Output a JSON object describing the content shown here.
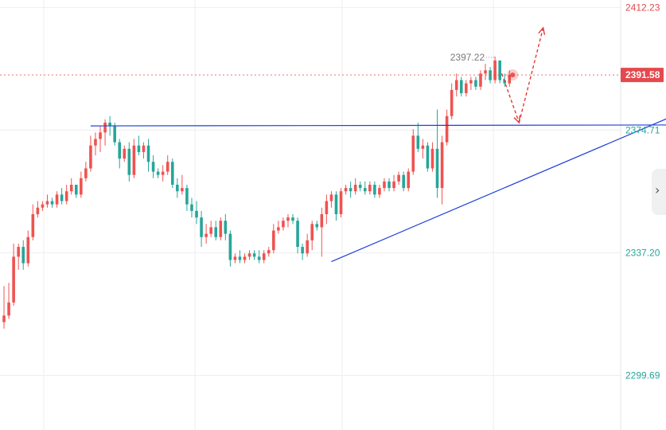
{
  "chart_data": {
    "type": "candlestick",
    "price_scale": {
      "labels": [
        "2412.23",
        "2374.71",
        "2337.20",
        "2299.69"
      ],
      "values": [
        2412.23,
        2374.71,
        2337.2,
        2299.69
      ],
      "ylim": [
        2283.0,
        2414.5
      ]
    },
    "last_price": {
      "value": 2391.58,
      "label": "2391.58"
    },
    "session_high": {
      "value": 2397.22,
      "label": "2397.22"
    },
    "ohlc": [
      [
        2316,
        2327,
        2314,
        2318
      ],
      [
        2318,
        2328,
        2317,
        2322
      ],
      [
        2322,
        2340,
        2321,
        2336
      ],
      [
        2336,
        2340,
        2332,
        2339
      ],
      [
        2339,
        2341,
        2332,
        2334
      ],
      [
        2334,
        2344,
        2333,
        2342
      ],
      [
        2342,
        2352,
        2341,
        2349
      ],
      [
        2349,
        2353,
        2348,
        2351
      ],
      [
        2351,
        2353,
        2350,
        2352
      ],
      [
        2352,
        2355,
        2351,
        2353
      ],
      [
        2353,
        2354,
        2351,
        2352
      ],
      [
        2352,
        2356,
        2351,
        2355
      ],
      [
        2355,
        2357,
        2352,
        2353
      ],
      [
        2353,
        2358,
        2352,
        2356
      ],
      [
        2356,
        2360,
        2355,
        2358
      ],
      [
        2358,
        2358,
        2354,
        2355
      ],
      [
        2355,
        2362,
        2354,
        2360
      ],
      [
        2360,
        2365,
        2359,
        2363
      ],
      [
        2363,
        2373,
        2362,
        2370
      ],
      [
        2370,
        2374,
        2367,
        2372
      ],
      [
        2372,
        2376,
        2368,
        2374
      ],
      [
        2374,
        2378,
        2370,
        2377
      ],
      [
        2377,
        2379,
        2373,
        2376
      ],
      [
        2376,
        2377,
        2370,
        2371
      ],
      [
        2371,
        2372,
        2363,
        2366
      ],
      [
        2366,
        2370,
        2365,
        2369
      ],
      [
        2369,
        2371,
        2359,
        2361
      ],
      [
        2361,
        2372,
        2360,
        2370
      ],
      [
        2370,
        2373,
        2367,
        2368
      ],
      [
        2368,
        2371,
        2366,
        2370
      ],
      [
        2370,
        2372,
        2362,
        2365
      ],
      [
        2365,
        2367,
        2360,
        2362
      ],
      [
        2362,
        2363,
        2360,
        2361
      ],
      [
        2361,
        2364,
        2359,
        2362
      ],
      [
        2362,
        2367,
        2361,
        2365
      ],
      [
        2365,
        2366,
        2357,
        2358
      ],
      [
        2358,
        2360,
        2354,
        2356
      ],
      [
        2356,
        2361,
        2355,
        2357
      ],
      [
        2357,
        2358,
        2350,
        2352
      ],
      [
        2352,
        2354,
        2348,
        2350
      ],
      [
        2350,
        2353,
        2346,
        2348
      ],
      [
        2348,
        2350,
        2339,
        2342
      ],
      [
        2342,
        2346,
        2340,
        2343
      ],
      [
        2343,
        2347,
        2342,
        2345
      ],
      [
        2345,
        2347,
        2341,
        2342
      ],
      [
        2342,
        2348,
        2341,
        2347
      ],
      [
        2347,
        2349,
        2341,
        2343
      ],
      [
        2343,
        2344,
        2333,
        2335
      ],
      [
        2335,
        2337,
        2334,
        2336
      ],
      [
        2336,
        2338,
        2334,
        2335
      ],
      [
        2335,
        2337,
        2334,
        2336
      ],
      [
        2336,
        2338,
        2335,
        2337
      ],
      [
        2337,
        2338,
        2335,
        2336
      ],
      [
        2336,
        2338,
        2334,
        2335
      ],
      [
        2335,
        2338,
        2334,
        2337
      ],
      [
        2337,
        2339,
        2336,
        2338
      ],
      [
        2338,
        2346,
        2337,
        2344
      ],
      [
        2344,
        2347,
        2343,
        2345
      ],
      [
        2345,
        2348,
        2344,
        2347
      ],
      [
        2347,
        2349,
        2345,
        2348
      ],
      [
        2348,
        2349,
        2346,
        2347
      ],
      [
        2347,
        2348,
        2337,
        2339
      ],
      [
        2339,
        2340,
        2335,
        2337
      ],
      [
        2337,
        2343,
        2336,
        2341
      ],
      [
        2341,
        2347,
        2338,
        2346
      ],
      [
        2346,
        2347,
        2344,
        2345
      ],
      [
        2345,
        2351,
        2336,
        2349
      ],
      [
        2349,
        2355,
        2346,
        2353
      ],
      [
        2353,
        2356,
        2351,
        2355
      ],
      [
        2355,
        2356,
        2347,
        2349
      ],
      [
        2349,
        2357,
        2348,
        2356
      ],
      [
        2356,
        2358,
        2355,
        2357
      ],
      [
        2357,
        2359,
        2354,
        2356
      ],
      [
        2356,
        2360,
        2355,
        2358
      ],
      [
        2358,
        2359,
        2356,
        2357
      ],
      [
        2357,
        2359,
        2355,
        2356
      ],
      [
        2356,
        2359,
        2355,
        2358
      ],
      [
        2358,
        2359,
        2354,
        2355
      ],
      [
        2355,
        2358,
        2354,
        2357
      ],
      [
        2357,
        2360,
        2356,
        2359
      ],
      [
        2359,
        2360,
        2356,
        2357
      ],
      [
        2357,
        2361,
        2356,
        2359
      ],
      [
        2359,
        2362,
        2358,
        2361
      ],
      [
        2361,
        2362,
        2356,
        2357
      ],
      [
        2357,
        2363,
        2356,
        2362
      ],
      [
        2362,
        2375,
        2361,
        2373
      ],
      [
        2373,
        2377,
        2368,
        2369
      ],
      [
        2369,
        2372,
        2366,
        2370
      ],
      [
        2370,
        2371,
        2362,
        2363
      ],
      [
        2363,
        2371,
        2362,
        2369
      ],
      [
        2369,
        2381,
        2354,
        2357
      ],
      [
        2357,
        2373,
        2352,
        2371
      ],
      [
        2371,
        2381,
        2370,
        2379
      ],
      [
        2379,
        2389,
        2378,
        2387
      ],
      [
        2387,
        2392,
        2385,
        2390
      ],
      [
        2390,
        2391,
        2385,
        2386
      ],
      [
        2386,
        2390,
        2385,
        2389
      ],
      [
        2389,
        2391,
        2387,
        2390
      ],
      [
        2390,
        2391,
        2387,
        2388
      ],
      [
        2388,
        2393,
        2387,
        2392
      ],
      [
        2392,
        2395,
        2390,
        2393
      ],
      [
        2393,
        2394,
        2389,
        2390
      ],
      [
        2390,
        2397.22,
        2389,
        2396
      ],
      [
        2396,
        2396,
        2389,
        2390
      ],
      [
        2390,
        2392,
        2388,
        2389
      ],
      [
        2389,
        2393,
        2388,
        2391.58
      ]
    ],
    "drawings": {
      "resistance": [
        [
          18,
          2376
        ],
        [
          145,
          2376.3
        ]
      ],
      "rising_trendline": [
        [
          68,
          2334.5
        ],
        [
          152,
          2387.2
        ]
      ],
      "projection_down": [
        [
          103.4,
          2392
        ],
        [
          107,
          2377
        ]
      ],
      "projection_up": [
        [
          107,
          2377
        ],
        [
          112,
          2406
        ]
      ]
    }
  },
  "colors": {
    "up": "#ef5350",
    "down": "#26a69a",
    "grid": "#eeeeee",
    "drawing_line": "#1f3fd6",
    "projection": "#e53935",
    "last_price_bg": "#e5484d",
    "top_axis_label": "#e5484d",
    "axis_label": "#26a69a"
  },
  "ui": {
    "collapse_icon": "chevron-right-icon",
    "collapse_glyph": "›"
  }
}
